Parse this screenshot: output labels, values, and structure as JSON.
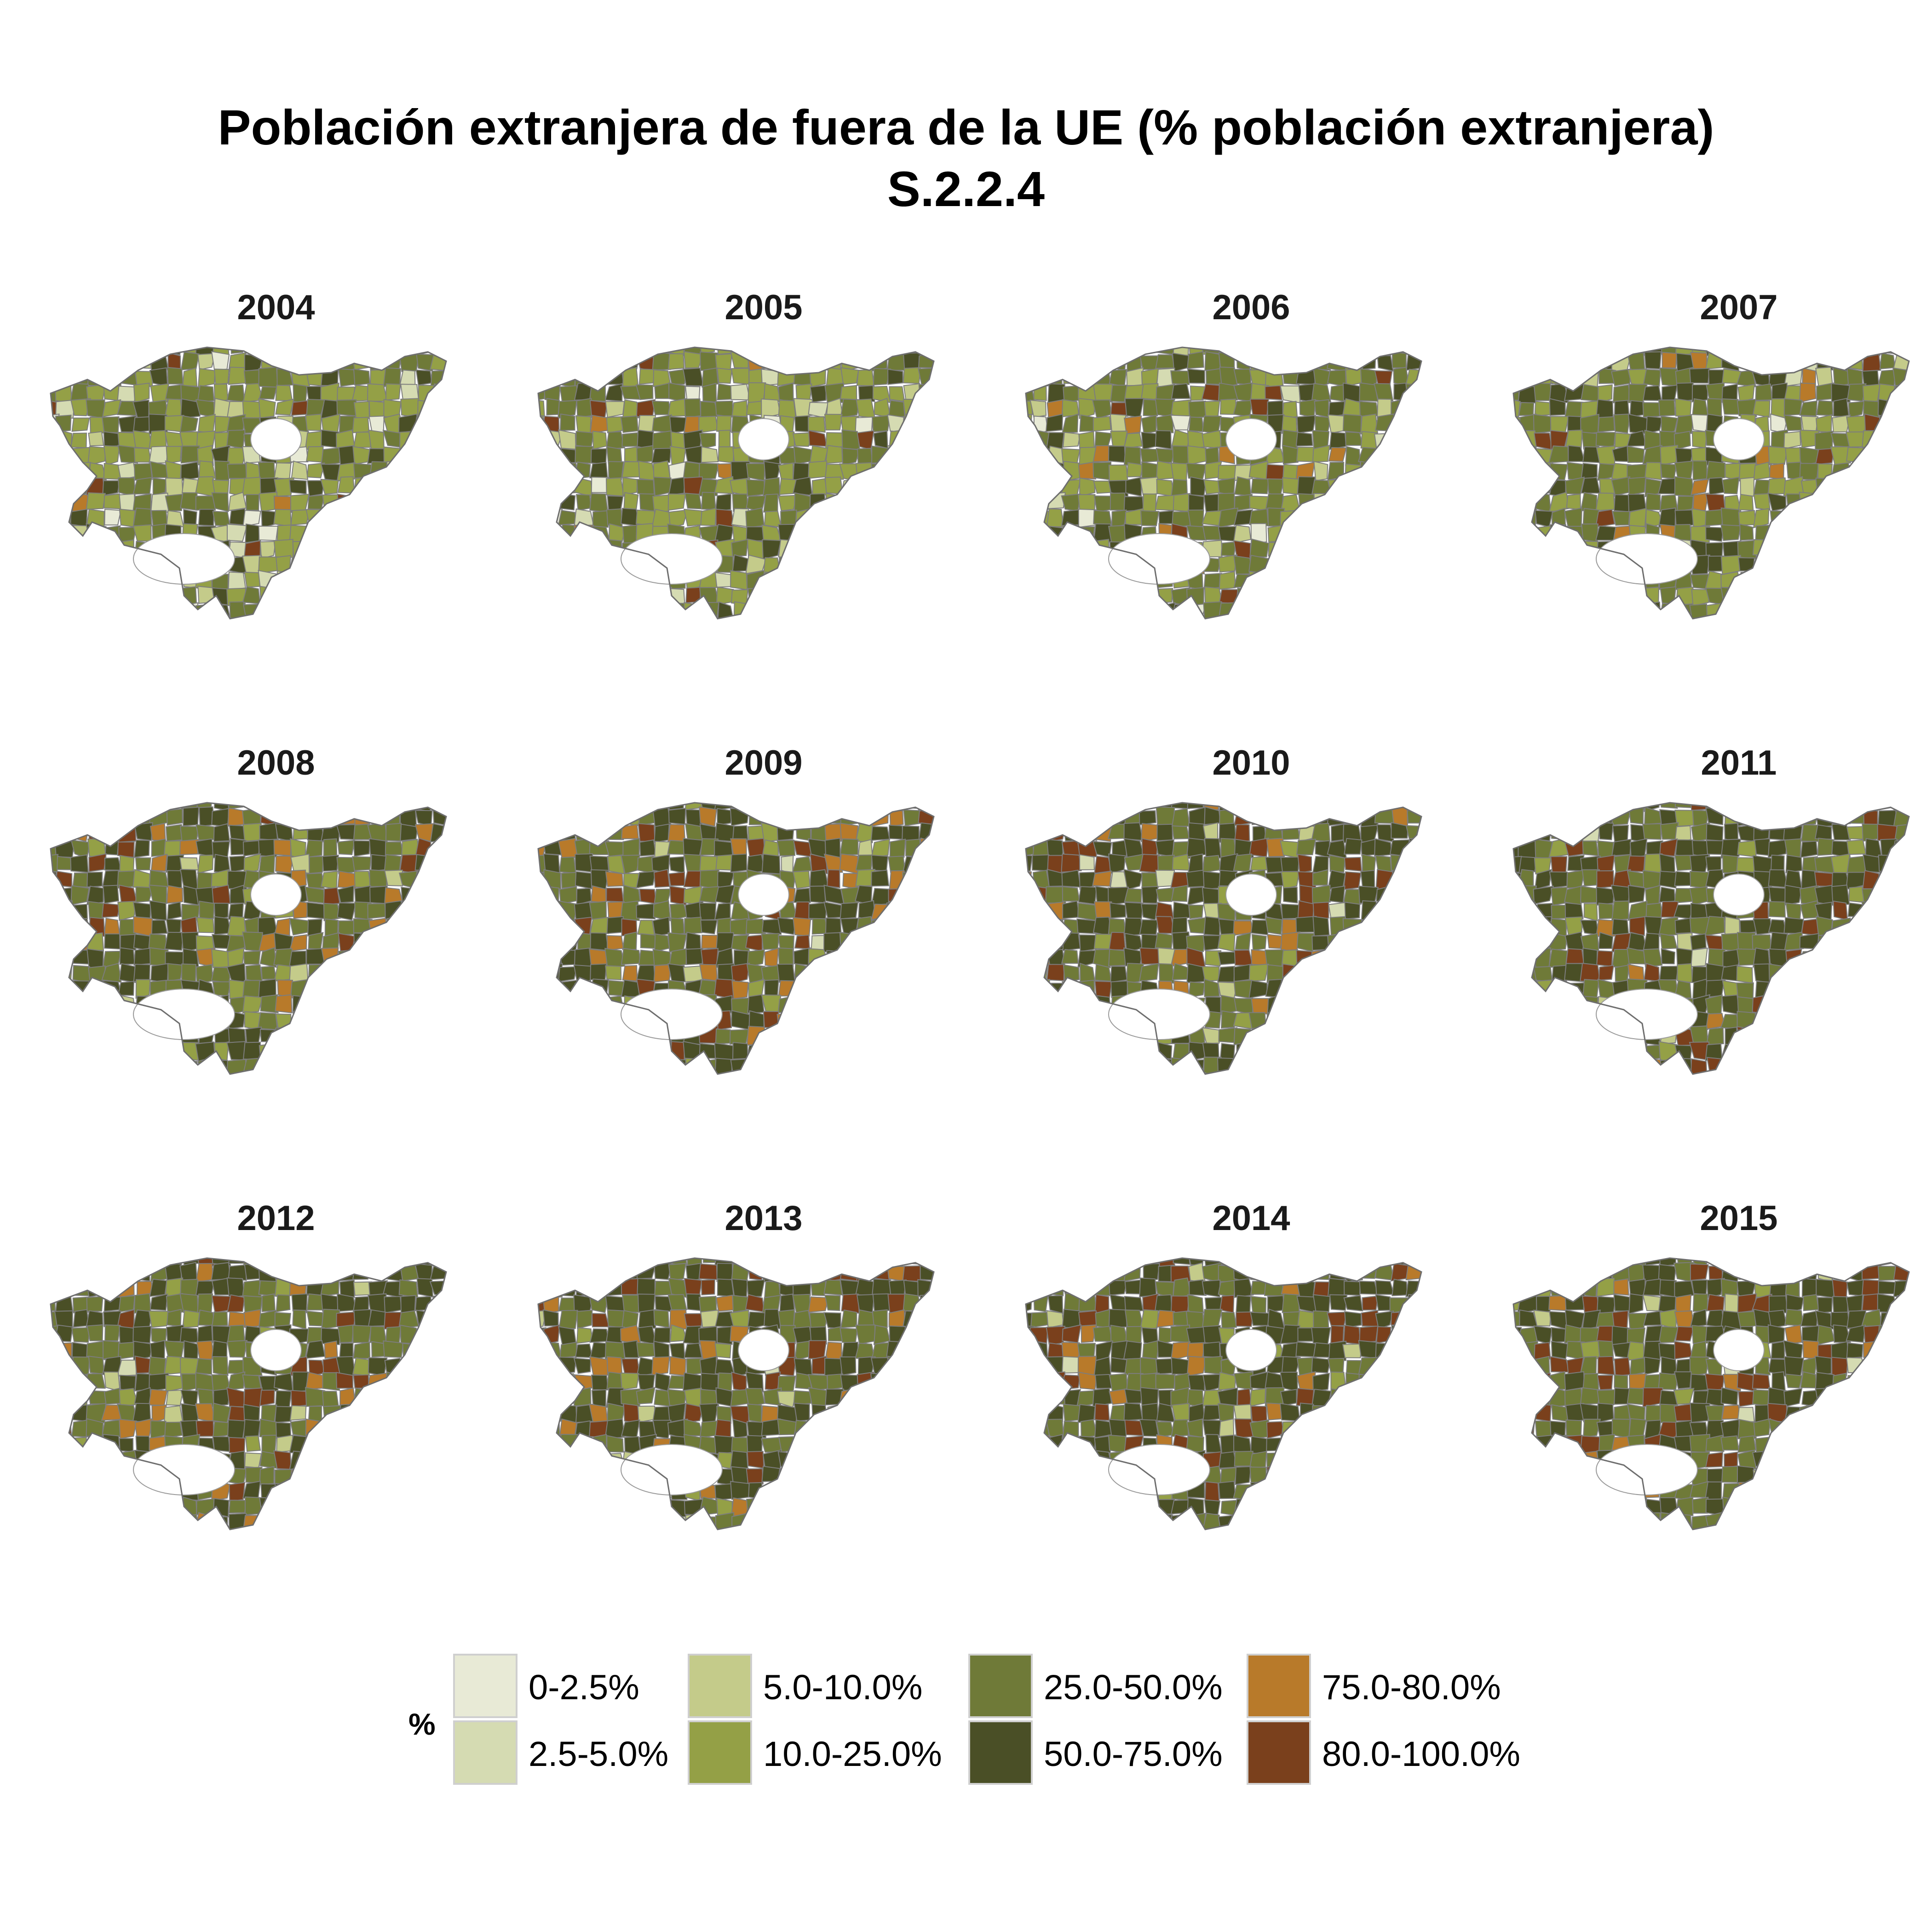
{
  "title": "Población extranjera de fuera de la UE (% población extranjera)",
  "subtitle": "S.2.2.4",
  "legend": {
    "title": "%",
    "classes": [
      {
        "label": "0-2.5%",
        "color": "#e8ead6"
      },
      {
        "label": "2.5-5.0%",
        "color": "#d5dbb2"
      },
      {
        "label": "5.0-10.0%",
        "color": "#c4cb8a"
      },
      {
        "label": "10.0-25.0%",
        "color": "#94a046"
      },
      {
        "label": "25.0-50.0%",
        "color": "#6f7a38"
      },
      {
        "label": "50.0-75.0%",
        "color": "#4a4f26"
      },
      {
        "label": "75.0-80.0%",
        "color": "#b87a2a"
      },
      {
        "label": "80.0-100.0%",
        "color": "#7a401c"
      }
    ]
  },
  "panels": [
    {
      "year": "2004",
      "weights": [
        3,
        4,
        6,
        40,
        32,
        12,
        1,
        2
      ]
    },
    {
      "year": "2005",
      "weights": [
        2,
        3,
        5,
        38,
        34,
        14,
        2,
        2
      ]
    },
    {
      "year": "2006",
      "weights": [
        1,
        2,
        4,
        32,
        36,
        18,
        4,
        3
      ]
    },
    {
      "year": "2007",
      "weights": [
        1,
        2,
        3,
        28,
        38,
        22,
        3,
        3
      ]
    },
    {
      "year": "2008",
      "weights": [
        0,
        1,
        2,
        8,
        32,
        40,
        9,
        8
      ]
    },
    {
      "year": "2009",
      "weights": [
        0,
        1,
        2,
        7,
        32,
        40,
        8,
        10
      ]
    },
    {
      "year": "2010",
      "weights": [
        0,
        1,
        2,
        6,
        30,
        44,
        6,
        11
      ]
    },
    {
      "year": "2011",
      "weights": [
        0,
        1,
        2,
        5,
        30,
        46,
        4,
        12
      ]
    },
    {
      "year": "2012",
      "weights": [
        0,
        1,
        2,
        5,
        34,
        40,
        9,
        9
      ]
    },
    {
      "year": "2013",
      "weights": [
        0,
        1,
        2,
        4,
        34,
        42,
        7,
        10
      ]
    },
    {
      "year": "2014",
      "weights": [
        0,
        1,
        2,
        4,
        32,
        44,
        6,
        11
      ]
    },
    {
      "year": "2015",
      "weights": [
        0,
        1,
        2,
        4,
        30,
        46,
        5,
        12
      ]
    }
  ]
}
